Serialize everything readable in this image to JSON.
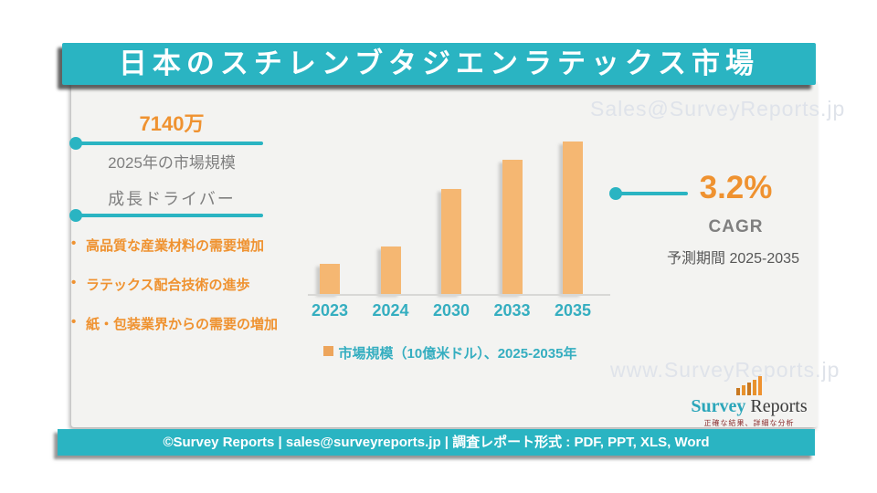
{
  "header": {
    "title": "日本のスチレンブタジエンラテックス市場"
  },
  "watermarks": {
    "top_right": "Sales@SurveyReports.jp",
    "bottom_right": "www.SurveyReports.jp"
  },
  "highlights": {
    "market_value": "7140万",
    "market_value_label": "2025年の市場規模",
    "drivers_title": "成長ドライバー",
    "drivers": [
      "高品質な産業材料の需要増加",
      "ラテックス配合技術の進歩",
      "紙・包装業界からの需要の増加"
    ]
  },
  "cagr": {
    "value": "3.2%",
    "label": "CAGR",
    "period": "予測期間 2025-2035"
  },
  "chart_data": {
    "type": "bar",
    "title": "",
    "categories": [
      "2023",
      "2024",
      "2030",
      "2033",
      "2035"
    ],
    "values": [
      0.2,
      0.31,
      0.69,
      0.88,
      1.0
    ],
    "ylim": [
      0,
      1
    ],
    "grid": false,
    "y_axis_shown": false,
    "bar_color": "#f5b772",
    "legend": {
      "label": "市場規模（10億米ドル）、2025-2035年",
      "position": "bottom-center",
      "marker_color": "#eda55c"
    }
  },
  "logo": {
    "icon": "bar-chart-icon",
    "word1": "Survey",
    "word2": "Reports",
    "tagline": "正確な結果、詳細な分析"
  },
  "footer": {
    "text": "©Survey Reports | sales@surveyreports.jp | 調査レポート形式 : PDF, PPT, XLS, Word"
  },
  "colors": {
    "teal": "#2ab4c2",
    "orange_accent": "#ef9230",
    "bar_orange": "#f5b772",
    "gray_text": "#7f7f7f",
    "dark_text": "#575757",
    "watermark": "#dfe3ea",
    "card_bg": "#f3f3f1"
  }
}
